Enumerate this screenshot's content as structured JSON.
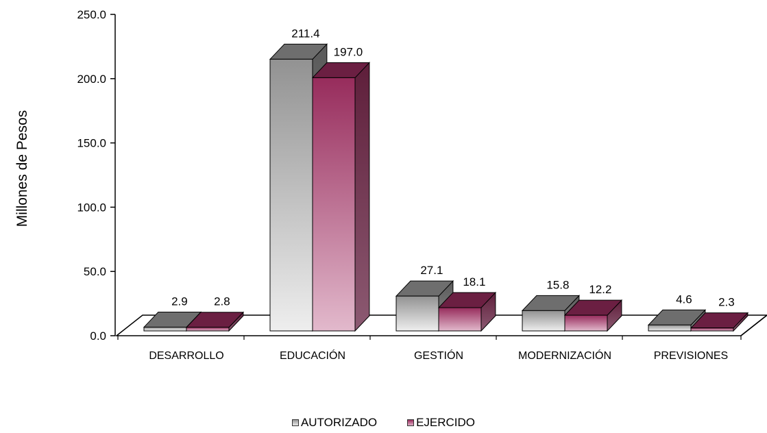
{
  "chart_data": {
    "type": "bar",
    "title": "",
    "xlabel": "",
    "ylabel": "Millones de Pesos",
    "ylim": [
      0,
      250
    ],
    "yticks": [
      "0.0",
      "50.0",
      "100.0",
      "150.0",
      "200.0",
      "250.0"
    ],
    "categories": [
      "DESARROLLO",
      "EDUCACIÓN",
      "GESTIÓN",
      "MODERNIZACIÓN",
      "PREVISIONES"
    ],
    "series": [
      {
        "name": "AUTORIZADO",
        "values": [
          2.9,
          211.4,
          27.1,
          15.8,
          4.6
        ],
        "labels": [
          "2.9",
          "211.4",
          "27.1",
          "15.8",
          "4.6"
        ],
        "color": "#a0a0a0"
      },
      {
        "name": "EJERCIDO",
        "values": [
          2.8,
          197.0,
          18.1,
          12.2,
          2.3
        ],
        "labels": [
          "2.8",
          "197.0",
          "18.1",
          "12.2",
          "2.3"
        ],
        "color": "#9b2d5e"
      }
    ],
    "legend_position": "bottom",
    "grid": false,
    "style": "3d-bar"
  }
}
